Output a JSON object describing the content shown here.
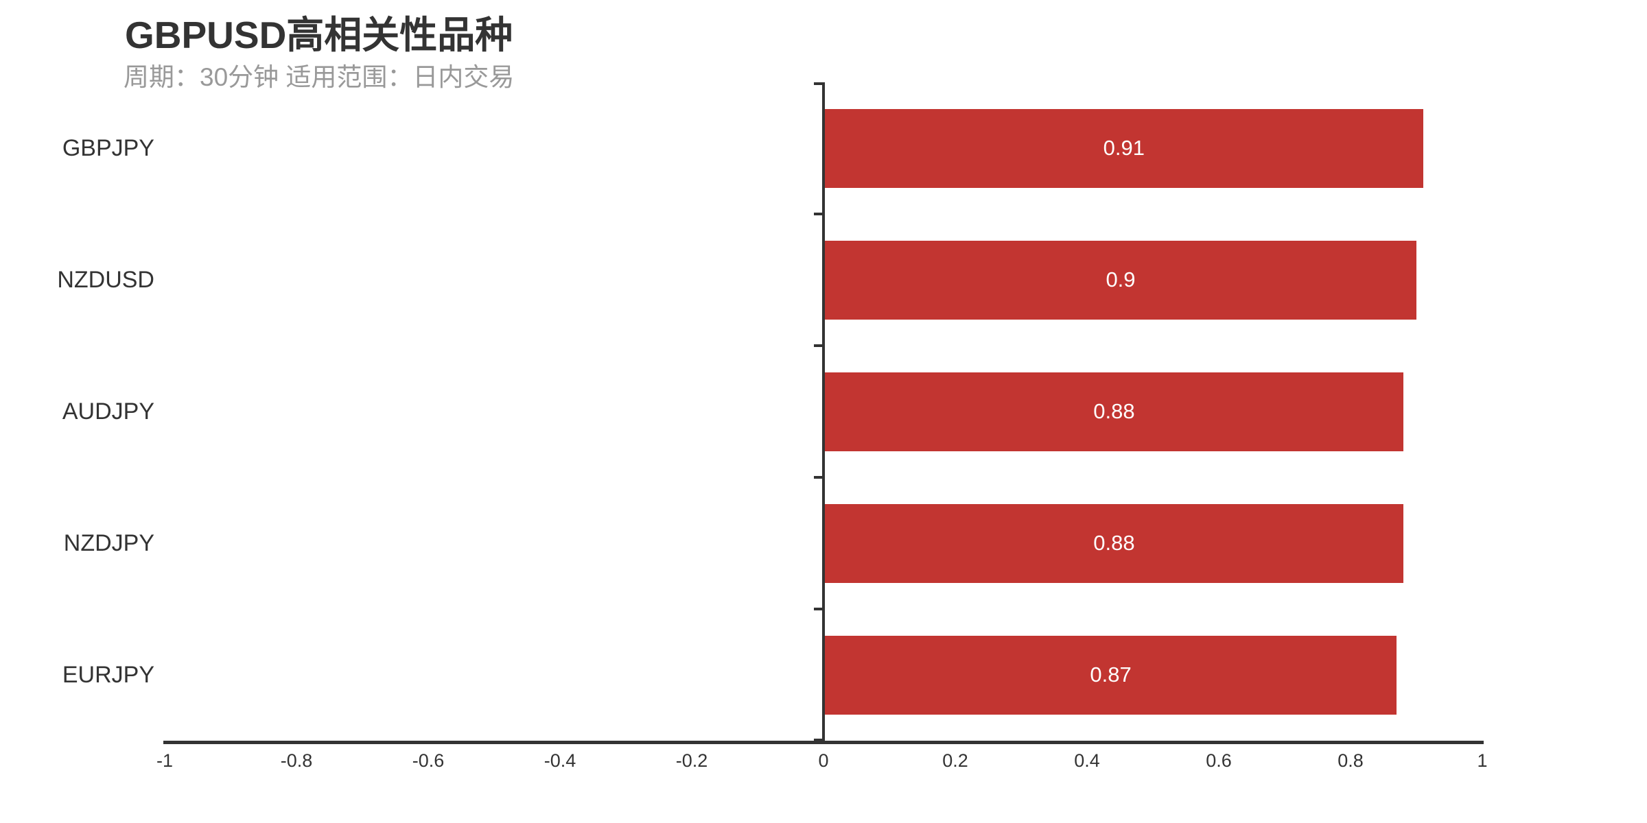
{
  "title": {
    "text": "GBPUSD高相关性品种",
    "subtext": "周期：30分钟 适用范围：日内交易"
  },
  "colors": {
    "bar": "#c23531",
    "axis_line": "#333333",
    "axis_label": "#333333",
    "title_text": "#333333",
    "subtitle_text": "#999999",
    "value_label": "#ffffff",
    "background": "#ffffff"
  },
  "chart_data": {
    "type": "bar",
    "orientation": "horizontal",
    "title": "GBPUSD高相关性品种",
    "subtitle": "周期：30分钟 适用范围：日内交易",
    "categories": [
      "GBPJPY",
      "NZDUSD",
      "AUDJPY",
      "NZDJPY",
      "EURJPY"
    ],
    "values": [
      0.91,
      0.9,
      0.88,
      0.88,
      0.87
    ],
    "value_labels": [
      "0.91",
      "0.9",
      "0.88",
      "0.88",
      "0.87"
    ],
    "bar_color": "#c23531",
    "value_label_position": "inside",
    "xlabel": "",
    "ylabel": "",
    "xlim": [
      -1,
      1
    ],
    "x_ticks": [
      "-1",
      "-0.8",
      "-0.6",
      "-0.4",
      "-0.2",
      "0",
      "0.2",
      "0.4",
      "0.6",
      "0.8",
      "1"
    ],
    "grid": false,
    "legend": false,
    "axis_on_zero": true
  }
}
